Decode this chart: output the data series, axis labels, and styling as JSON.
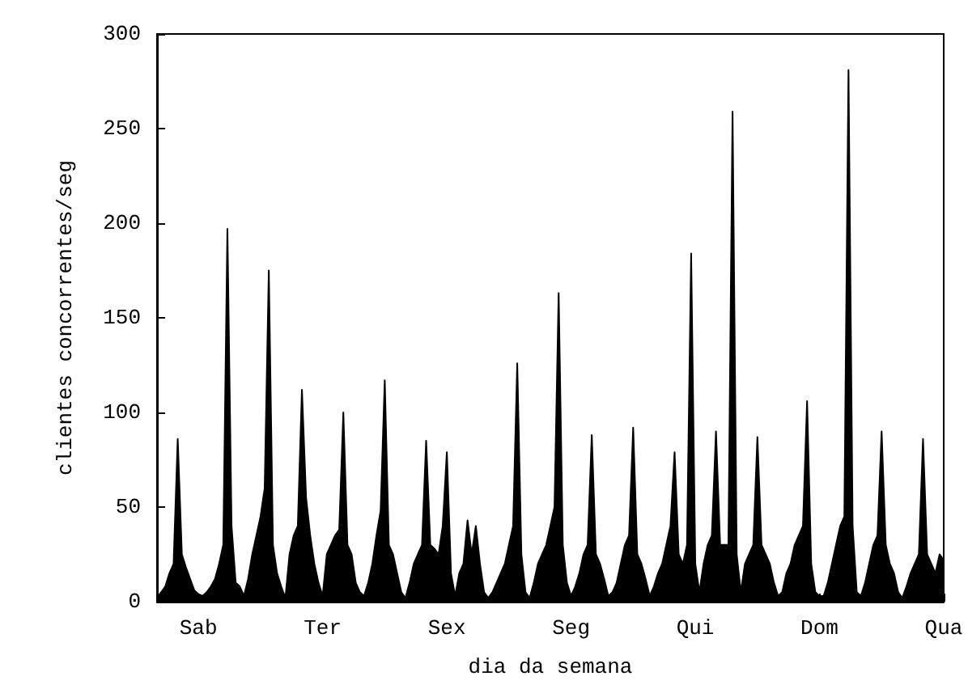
{
  "chart_data": {
    "type": "area",
    "xlabel": "dia da semana",
    "ylabel": "clientes concorrentes/seg",
    "categories": [
      null,
      null,
      null,
      null,
      null,
      null,
      null,
      null,
      null,
      null,
      "Sab",
      null,
      null,
      null,
      null,
      null,
      null,
      null,
      null,
      null,
      null,
      null,
      null,
      null,
      null,
      null,
      null,
      null,
      null,
      null,
      null,
      null,
      null,
      null,
      null,
      null,
      null,
      null,
      null,
      null,
      "Ter",
      null,
      null,
      null,
      null,
      null,
      null,
      null,
      null,
      null,
      null,
      null,
      null,
      null,
      null,
      null,
      null,
      null,
      null,
      null,
      null,
      null,
      null,
      null,
      null,
      null,
      null,
      null,
      null,
      null,
      "Sex",
      null,
      null,
      null,
      null,
      null,
      null,
      null,
      null,
      null,
      null,
      null,
      null,
      null,
      null,
      null,
      null,
      null,
      null,
      null,
      null,
      null,
      null,
      null,
      null,
      null,
      null,
      null,
      null,
      null,
      "Seg",
      null,
      null,
      null,
      null,
      null,
      null,
      null,
      null,
      null,
      null,
      null,
      null,
      null,
      null,
      null,
      null,
      null,
      null,
      null,
      null,
      null,
      null,
      null,
      null,
      null,
      null,
      null,
      null,
      null,
      "Qui",
      null,
      null,
      null,
      null,
      null,
      null,
      null,
      null,
      null,
      null,
      null,
      null,
      null,
      null,
      null,
      null,
      null,
      null,
      null,
      null,
      null,
      null,
      null,
      null,
      null,
      null,
      null,
      null,
      null,
      "Dom",
      null,
      null,
      null,
      null,
      null,
      null,
      null,
      null,
      null,
      null,
      null,
      null,
      null,
      null,
      null,
      null,
      null,
      null,
      null,
      null,
      null,
      null,
      null,
      null,
      null,
      null,
      null,
      null,
      null,
      "Qua"
    ],
    "ylim": [
      0,
      300
    ],
    "yticks": [
      0,
      50,
      100,
      150,
      200,
      250,
      300
    ],
    "grid": false,
    "marker": "none",
    "series": [
      {
        "color": "#000000",
        "values": [
          2,
          5,
          8,
          15,
          20,
          86,
          25,
          18,
          12,
          6,
          4,
          3,
          5,
          8,
          12,
          20,
          30,
          197,
          40,
          10,
          8,
          3,
          12,
          25,
          35,
          45,
          60,
          175,
          30,
          15,
          8,
          2,
          25,
          35,
          40,
          112,
          55,
          35,
          20,
          10,
          3,
          25,
          30,
          35,
          38,
          100,
          30,
          25,
          10,
          5,
          3,
          10,
          20,
          35,
          48,
          117,
          30,
          25,
          15,
          5,
          2,
          10,
          20,
          25,
          30,
          85,
          30,
          28,
          25,
          40,
          79,
          15,
          3,
          15,
          20,
          43,
          25,
          40,
          20,
          5,
          2,
          5,
          10,
          15,
          20,
          30,
          40,
          126,
          25,
          5,
          2,
          10,
          20,
          25,
          30,
          40,
          50,
          163,
          30,
          10,
          3,
          8,
          15,
          25,
          30,
          88,
          25,
          20,
          12,
          3,
          5,
          10,
          20,
          30,
          35,
          92,
          25,
          20,
          12,
          3,
          8,
          15,
          20,
          30,
          40,
          79,
          25,
          20,
          30,
          184,
          20,
          5,
          20,
          30,
          35,
          90,
          30,
          30,
          30,
          259,
          25,
          5,
          20,
          25,
          30,
          87,
          30,
          25,
          20,
          10,
          3,
          5,
          15,
          20,
          30,
          35,
          40,
          106,
          20,
          5,
          3,
          3,
          10,
          20,
          30,
          40,
          45,
          281,
          40,
          5,
          3,
          10,
          20,
          30,
          35,
          90,
          30,
          20,
          15,
          5,
          2,
          8,
          15,
          20,
          25,
          86,
          25,
          20,
          15,
          25,
          22
        ]
      }
    ]
  }
}
